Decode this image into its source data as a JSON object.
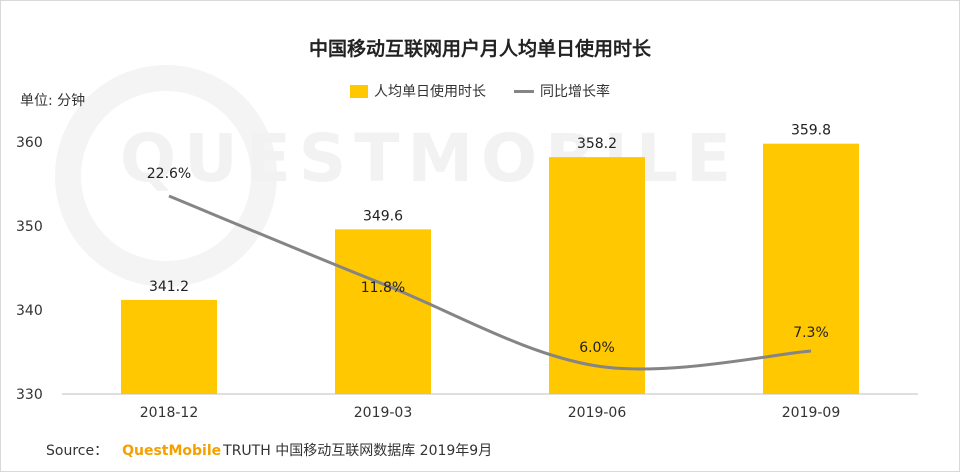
{
  "title": "中国移动互联网用户月人均单日使用时长",
  "unit_label": "单位: 分钟",
  "watermark": "QUESTMOBILE",
  "legend": {
    "bar_label": "人均单日使用时长",
    "line_label": "同比增长率"
  },
  "source": {
    "prefix": "Source：",
    "brand": "QuestMobile",
    "text": "TRUTH 中国移动互联网数据库 2019年9月"
  },
  "colors": {
    "bar": "#FFC800",
    "line": "#858585",
    "brand": "#F5A000"
  },
  "chart_data": {
    "type": "bar",
    "categories": [
      "2018-12",
      "2019-03",
      "2019-06",
      "2019-09"
    ],
    "series": [
      {
        "name": "人均单日使用时长",
        "type": "bar",
        "values": [
          341.2,
          349.6,
          358.2,
          359.8
        ],
        "labels": [
          "341.2",
          "349.6",
          "358.2",
          "359.8"
        ]
      },
      {
        "name": "同比增长率",
        "type": "line",
        "values": [
          22.6,
          11.8,
          6.0,
          7.3
        ],
        "labels": [
          "22.6%",
          "11.8%",
          "6.0%",
          "7.3%"
        ]
      }
    ],
    "y_ticks": [
      "330",
      "340",
      "350",
      "360"
    ],
    "ylim": [
      330,
      365
    ],
    "grid": false,
    "legend_position": "top-center"
  }
}
